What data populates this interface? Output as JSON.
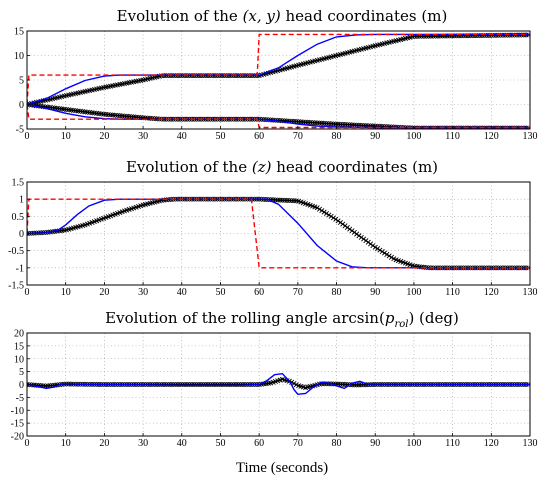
{
  "figure": {
    "xlabel": "Time (seconds)"
  },
  "chart_data": [
    {
      "type": "line",
      "title": "Evolution of the (x, y) head coordinates (m)",
      "xlim": [
        0,
        130
      ],
      "ylim": [
        -5,
        15
      ],
      "xticks": [
        0,
        10,
        20,
        30,
        40,
        50,
        60,
        70,
        80,
        90,
        100,
        110,
        120,
        130
      ],
      "yticks": [
        -5,
        0,
        5,
        10,
        15
      ],
      "grid": true,
      "series": [
        {
          "color": "#ff0000",
          "style": "dashed",
          "x": [
            0,
            0.5,
            59.5,
            60,
            130
          ],
          "y": [
            0,
            6,
            6,
            14.3,
            14.3
          ]
        },
        {
          "color": "#ff0000",
          "style": "dashed",
          "x": [
            0,
            0.5,
            59.5,
            60,
            130
          ],
          "y": [
            0,
            -3,
            -3,
            -4.7,
            -4.7
          ]
        },
        {
          "color": "#0000ff",
          "style": "solid",
          "x": [
            0,
            5,
            10,
            15,
            20,
            24,
            60,
            65,
            70,
            75,
            80,
            85,
            90,
            130
          ],
          "y": [
            0,
            1.2,
            3.2,
            4.9,
            5.8,
            6,
            6,
            7.5,
            10,
            12.3,
            13.8,
            14.2,
            14.3,
            14.3
          ]
        },
        {
          "color": "#0000ff",
          "style": "solid",
          "x": [
            0,
            5,
            10,
            15,
            20,
            25,
            60,
            65,
            70,
            75,
            80,
            90,
            130
          ],
          "y": [
            0,
            -0.8,
            -1.8,
            -2.5,
            -2.9,
            -3,
            -3,
            -3.4,
            -4.0,
            -4.4,
            -4.6,
            -4.7,
            -4.7
          ]
        },
        {
          "color": "#000000",
          "style": "solid-x",
          "x": [
            0,
            10,
            20,
            30,
            35,
            60,
            70,
            80,
            90,
            100,
            130
          ],
          "y": [
            0,
            1.8,
            3.5,
            5.0,
            5.9,
            5.9,
            8.0,
            10.0,
            12.0,
            13.9,
            14.2
          ]
        },
        {
          "color": "#000000",
          "style": "solid-x",
          "x": [
            0,
            10,
            20,
            30,
            35,
            60,
            70,
            80,
            90,
            100,
            130
          ],
          "y": [
            0,
            -1.0,
            -2.0,
            -2.7,
            -3.0,
            -3.0,
            -3.5,
            -4.0,
            -4.4,
            -4.8,
            -4.8
          ]
        }
      ]
    },
    {
      "type": "line",
      "title": "Evolution of the (z) head coordinates (m)",
      "xlim": [
        0,
        130
      ],
      "ylim": [
        -1.5,
        1.5
      ],
      "xticks": [
        0,
        10,
        20,
        30,
        40,
        50,
        60,
        70,
        80,
        90,
        100,
        110,
        120,
        130
      ],
      "yticks": [
        -1.5,
        -1,
        -0.5,
        0,
        0.5,
        1,
        1.5
      ],
      "yticklabels": [
        "-1.5",
        "-1",
        "-0.5",
        "0",
        "0.5",
        "1",
        "1.5"
      ],
      "grid": true,
      "series": [
        {
          "color": "#ff0000",
          "style": "dashed",
          "x": [
            0,
            0.5,
            58,
            60,
            130
          ],
          "y": [
            0,
            1,
            1,
            -1,
            -1
          ]
        },
        {
          "color": "#0000ff",
          "style": "solid",
          "x": [
            0,
            5,
            8,
            10,
            13,
            16,
            20,
            24,
            62,
            65,
            70,
            75,
            80,
            84,
            88,
            130
          ],
          "y": [
            0,
            0.02,
            0.1,
            0.25,
            0.55,
            0.8,
            0.97,
            1.0,
            1.0,
            0.85,
            0.3,
            -0.35,
            -0.8,
            -0.97,
            -1.0,
            -1.0
          ]
        },
        {
          "color": "#000000",
          "style": "solid-x",
          "x": [
            0,
            5,
            10,
            15,
            20,
            25,
            30,
            35,
            38,
            60,
            70,
            75,
            80,
            85,
            90,
            95,
            100,
            104,
            130
          ],
          "y": [
            0,
            0.03,
            0.1,
            0.25,
            0.45,
            0.65,
            0.83,
            0.97,
            1.0,
            1.0,
            0.95,
            0.75,
            0.4,
            0.0,
            -0.4,
            -0.75,
            -0.95,
            -1.0,
            -1.0
          ]
        }
      ]
    },
    {
      "type": "line",
      "title": "Evolution of the rolling angle arcsin(p_rol) (deg)",
      "xlim": [
        0,
        130
      ],
      "ylim": [
        -20,
        20
      ],
      "xticks": [
        0,
        10,
        20,
        30,
        40,
        50,
        60,
        70,
        80,
        90,
        100,
        110,
        120,
        130
      ],
      "yticks": [
        -20,
        -15,
        -10,
        -5,
        0,
        5,
        10,
        15,
        20
      ],
      "grid": true,
      "series": [
        {
          "color": "#0000ff",
          "style": "solid",
          "x": [
            0,
            3,
            5,
            7,
            9,
            11,
            13,
            20,
            40,
            55,
            60,
            62,
            64,
            66,
            68,
            69,
            70,
            72,
            74,
            76,
            78,
            80,
            82,
            84,
            86,
            88,
            130
          ],
          "y": [
            0,
            -0.8,
            -1.5,
            -1.0,
            0.2,
            0.3,
            0.1,
            0,
            -0.3,
            -0.3,
            0,
            1.5,
            3.8,
            4.2,
            1.0,
            -2.0,
            -3.8,
            -3.5,
            -1.0,
            0.8,
            0.5,
            -0.5,
            -1.5,
            0.5,
            1.2,
            0.2,
            0
          ]
        },
        {
          "color": "#000000",
          "style": "solid-x",
          "x": [
            0,
            5,
            7,
            10,
            13,
            20,
            40,
            60,
            63,
            66,
            68,
            70,
            72,
            74,
            76,
            80,
            85,
            90,
            130
          ],
          "y": [
            0,
            -0.6,
            -0.3,
            0.2,
            0.1,
            0,
            0,
            0,
            0.6,
            2.0,
            1.2,
            -0.4,
            -1.2,
            -0.5,
            0.3,
            0.2,
            -0.2,
            0,
            0
          ]
        }
      ]
    }
  ]
}
